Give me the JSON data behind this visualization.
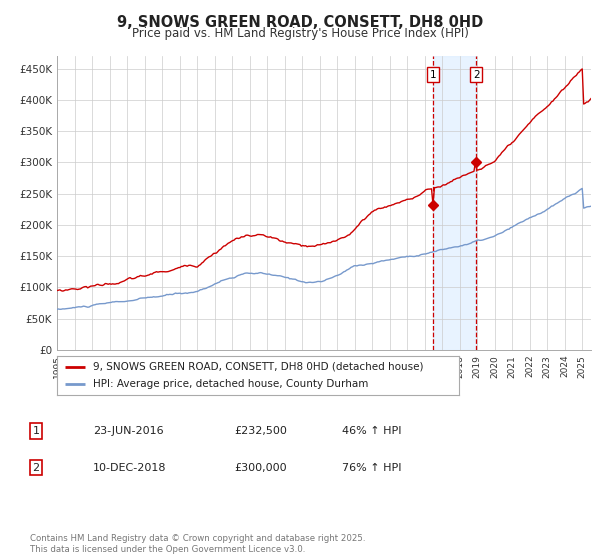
{
  "title": "9, SNOWS GREEN ROAD, CONSETT, DH8 0HD",
  "subtitle": "Price paid vs. HM Land Registry's House Price Index (HPI)",
  "title_fontsize": 10.5,
  "subtitle_fontsize": 8.5,
  "background_color": "#ffffff",
  "plot_bg_color": "#ffffff",
  "grid_color": "#cccccc",
  "red_line_color": "#cc0000",
  "blue_line_color": "#7799cc",
  "marker_color": "#cc0000",
  "vline_color": "#cc0000",
  "vspan_color": "#ddeeff",
  "sale1_date_num": 2016.47,
  "sale1_price": 232500,
  "sale2_date_num": 2018.94,
  "sale2_price": 300000,
  "sale1_label": "1",
  "sale2_label": "2",
  "legend_label_red": "9, SNOWS GREEN ROAD, CONSETT, DH8 0HD (detached house)",
  "legend_label_blue": "HPI: Average price, detached house, County Durham",
  "table_row1": [
    "1",
    "23-JUN-2016",
    "£232,500",
    "46% ↑ HPI"
  ],
  "table_row2": [
    "2",
    "10-DEC-2018",
    "£300,000",
    "76% ↑ HPI"
  ],
  "footer": "Contains HM Land Registry data © Crown copyright and database right 2025.\nThis data is licensed under the Open Government Licence v3.0.",
  "ylim": [
    0,
    470000
  ],
  "yticks": [
    0,
    50000,
    100000,
    150000,
    200000,
    250000,
    300000,
    350000,
    400000,
    450000
  ],
  "xlim_start": 1995.0,
  "xlim_end": 2025.5
}
